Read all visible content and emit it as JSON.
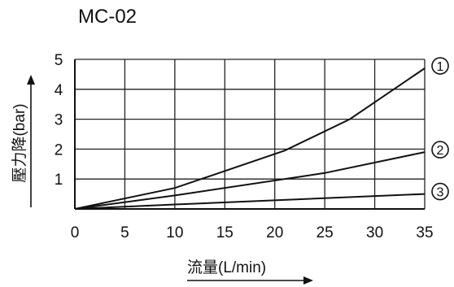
{
  "chart_data": {
    "type": "line",
    "title": "MC-02",
    "xlabel": "流量(L/min)",
    "ylabel": "壓力降(bar)",
    "xlim": [
      0,
      35
    ],
    "ylim": [
      0,
      5
    ],
    "x_ticks": [
      0,
      5,
      10,
      15,
      20,
      25,
      30,
      35
    ],
    "y_ticks": [
      1,
      2,
      3,
      4,
      5
    ],
    "grid": true,
    "series": [
      {
        "name": "①",
        "points": [
          [
            0,
            0
          ],
          [
            10,
            0.7
          ],
          [
            21,
            1.95
          ],
          [
            27.5,
            3.0
          ],
          [
            35,
            4.7
          ]
        ]
      },
      {
        "name": "②",
        "points": [
          [
            0,
            0
          ],
          [
            10,
            0.45
          ],
          [
            25,
            1.2
          ],
          [
            35,
            1.9
          ]
        ]
      },
      {
        "name": "③",
        "points": [
          [
            0,
            0
          ],
          [
            10,
            0.15
          ],
          [
            35,
            0.5
          ]
        ]
      }
    ],
    "colors": {
      "line": "#111111",
      "grid": "#222222",
      "background": "#ffffff"
    }
  }
}
